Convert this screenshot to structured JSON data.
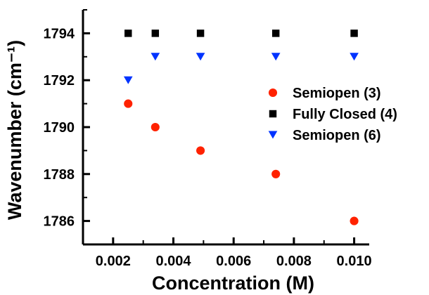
{
  "chart_data": {
    "type": "scatter",
    "xlabel": "Concentration (M)",
    "ylabel": "Wavenumber (cm⁻¹)",
    "xlim": [
      0.001,
      0.0105
    ],
    "ylim": [
      1785,
      1795
    ],
    "x_ticks": [
      0.002,
      0.004,
      0.006,
      0.008,
      0.01
    ],
    "x_tick_labels": [
      "0.002",
      "0.004",
      "0.006",
      "0.008",
      "0.010"
    ],
    "y_ticks": [
      1786,
      1788,
      1790,
      1792,
      1794
    ],
    "y_tick_labels": [
      "1786",
      "1788",
      "1790",
      "1792",
      "1794"
    ],
    "grid": false,
    "legend_position": "right",
    "series": [
      {
        "name": "Semiopen (3)",
        "marker": "circle",
        "color": "#ff2200",
        "points": [
          {
            "x": 0.0025,
            "y": 1791
          },
          {
            "x": 0.0034,
            "y": 1790
          },
          {
            "x": 0.0049,
            "y": 1789
          },
          {
            "x": 0.0074,
            "y": 1788
          },
          {
            "x": 0.01,
            "y": 1786
          }
        ]
      },
      {
        "name": "Fully Closed (4)",
        "marker": "square",
        "color": "#000000",
        "points": [
          {
            "x": 0.0025,
            "y": 1794
          },
          {
            "x": 0.0034,
            "y": 1794
          },
          {
            "x": 0.0049,
            "y": 1794
          },
          {
            "x": 0.0074,
            "y": 1794
          },
          {
            "x": 0.01,
            "y": 1794
          }
        ]
      },
      {
        "name": "Semiopen (6)",
        "marker": "triangle-down",
        "color": "#0033ff",
        "points": [
          {
            "x": 0.0025,
            "y": 1792
          },
          {
            "x": 0.0034,
            "y": 1793
          },
          {
            "x": 0.0049,
            "y": 1793
          },
          {
            "x": 0.0074,
            "y": 1793
          },
          {
            "x": 0.01,
            "y": 1793
          }
        ]
      }
    ]
  }
}
